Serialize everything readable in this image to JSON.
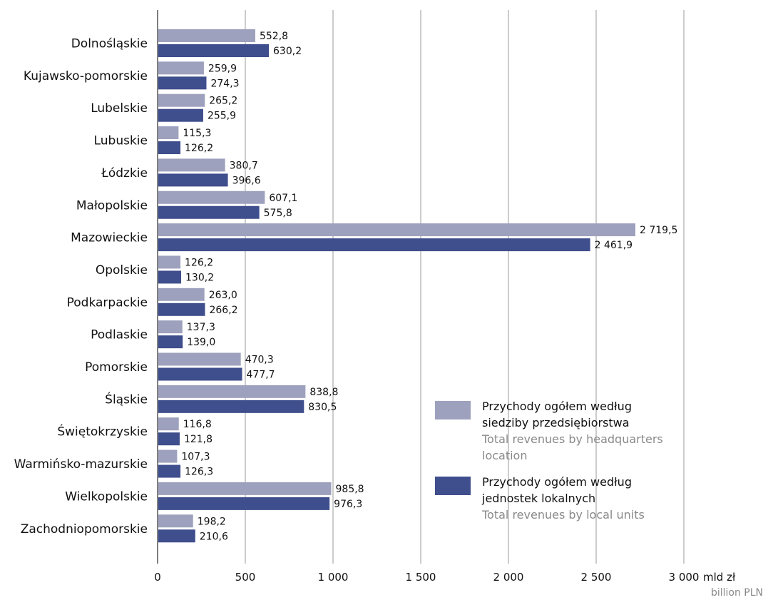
{
  "chart_data": {
    "type": "bar",
    "orientation": "horizontal",
    "categories": [
      "Dolnośląskie",
      "Kujawsko-pomorskie",
      "Lubelskie",
      "Lubuskie",
      "Łódzkie",
      "Małopolskie",
      "Mazowieckie",
      "Opolskie",
      "Podkarpackie",
      "Podlaskie",
      "Pomorskie",
      "Śląskie",
      "Świętokrzyskie",
      "Warmińsko-mazurskie",
      "Wielkopolskie",
      "Zachodniopomorskie"
    ],
    "series": [
      {
        "key": "hq",
        "color": "#9ea1bd",
        "values": [
          552.8,
          259.9,
          265.2,
          115.3,
          380.7,
          607.1,
          2719.5,
          126.2,
          263.0,
          137.3,
          470.3,
          838.8,
          116.8,
          107.3,
          985.8,
          198.2
        ],
        "labels": [
          "552,8",
          "259,9",
          "265,2",
          "115,3",
          "380,7",
          "607,1",
          "2 719,5",
          "126,2",
          "263,0",
          "137,3",
          "470,3",
          "838,8",
          "116,8",
          "107,3",
          "985,8",
          "198,2"
        ]
      },
      {
        "key": "local",
        "color": "#3f4e8c",
        "values": [
          630.2,
          274.3,
          255.9,
          126.2,
          396.6,
          575.8,
          2461.9,
          130.2,
          266.2,
          139.0,
          477.7,
          830.5,
          121.8,
          126.3,
          976.3,
          210.6
        ],
        "labels": [
          "630,2",
          "274,3",
          "255,9",
          "126,2",
          "396,6",
          "575,8",
          "2 461,9",
          "130,2",
          "266,2",
          "139,0",
          "477,7",
          "830,5",
          "121,8",
          "126,3",
          "976,3",
          "210,6"
        ]
      }
    ],
    "xlim": [
      0,
      3000
    ],
    "xticks": [
      0,
      500,
      1000,
      1500,
      2000,
      2500,
      3000
    ],
    "xtick_labels": [
      "0",
      "500",
      "1 000",
      "1 500",
      "2 000",
      "2 500",
      "3 000"
    ],
    "x_unit": "mld zł",
    "x_unit_en": "billion PLN",
    "grid": "vertical",
    "legend_position": "bottom-right"
  },
  "legend": {
    "hq_pl": "Przychody ogółem według\nsiedziby przedsiębiorstwa",
    "hq_en": "Total revenues by headquarters\nlocation",
    "local_pl": "Przychody ogółem według\njednostek lokalnych",
    "local_en": "Total revenues by local units"
  }
}
